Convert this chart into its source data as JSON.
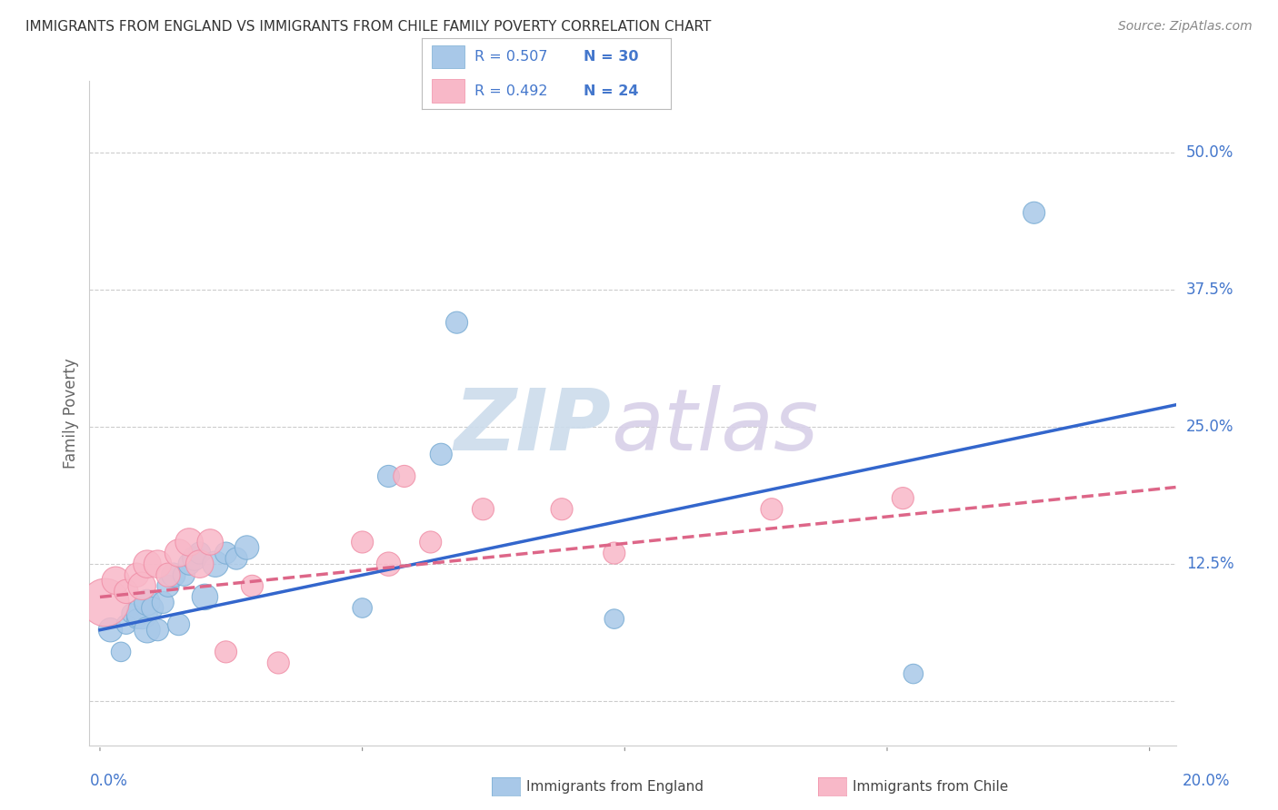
{
  "title": "IMMIGRANTS FROM ENGLAND VS IMMIGRANTS FROM CHILE FAMILY POVERTY CORRELATION CHART",
  "source": "Source: ZipAtlas.com",
  "ylabel": "Family Poverty",
  "y_tick_values": [
    0.0,
    0.125,
    0.25,
    0.375,
    0.5
  ],
  "y_tick_labels": [
    "",
    "12.5%",
    "25.0%",
    "37.5%",
    "50.0%"
  ],
  "xlim": [
    -0.002,
    0.205
  ],
  "ylim": [
    -0.04,
    0.565
  ],
  "legend_r1": "R = 0.507",
  "legend_n1": "N = 30",
  "legend_r2": "R = 0.492",
  "legend_n2": "N = 24",
  "england_color": "#a8c8e8",
  "england_edge_color": "#7aadd4",
  "chile_color": "#f8b8c8",
  "chile_edge_color": "#f090a8",
  "england_line_color": "#3366cc",
  "chile_line_color": "#dd6688",
  "watermark_zip_color": "#ccdcec",
  "watermark_atlas_color": "#d8d0e8",
  "england_x": [
    0.002,
    0.004,
    0.005,
    0.006,
    0.007,
    0.008,
    0.009,
    0.009,
    0.01,
    0.011,
    0.012,
    0.013,
    0.014,
    0.015,
    0.016,
    0.017,
    0.018,
    0.019,
    0.02,
    0.022,
    0.024,
    0.026,
    0.028,
    0.05,
    0.055,
    0.065,
    0.068,
    0.098,
    0.155,
    0.178
  ],
  "england_y": [
    0.065,
    0.045,
    0.07,
    0.08,
    0.075,
    0.08,
    0.09,
    0.065,
    0.085,
    0.065,
    0.09,
    0.105,
    0.115,
    0.07,
    0.115,
    0.125,
    0.13,
    0.135,
    0.095,
    0.125,
    0.135,
    0.13,
    0.14,
    0.085,
    0.205,
    0.225,
    0.345,
    0.075,
    0.025,
    0.445
  ],
  "england_size": [
    30,
    20,
    20,
    20,
    20,
    50,
    35,
    35,
    25,
    25,
    25,
    25,
    30,
    25,
    25,
    25,
    30,
    25,
    35,
    35,
    25,
    25,
    30,
    20,
    25,
    25,
    25,
    20,
    20,
    25
  ],
  "chile_x": [
    0.001,
    0.003,
    0.005,
    0.007,
    0.008,
    0.009,
    0.011,
    0.013,
    0.015,
    0.017,
    0.019,
    0.021,
    0.024,
    0.029,
    0.034,
    0.05,
    0.055,
    0.058,
    0.063,
    0.073,
    0.088,
    0.098,
    0.128,
    0.153
  ],
  "chile_y": [
    0.09,
    0.11,
    0.1,
    0.115,
    0.105,
    0.125,
    0.125,
    0.115,
    0.135,
    0.145,
    0.125,
    0.145,
    0.045,
    0.105,
    0.035,
    0.145,
    0.125,
    0.205,
    0.145,
    0.175,
    0.175,
    0.135,
    0.175,
    0.185
  ],
  "chile_size": [
    120,
    40,
    30,
    30,
    40,
    40,
    40,
    30,
    40,
    40,
    40,
    35,
    25,
    25,
    25,
    25,
    30,
    25,
    25,
    25,
    25,
    25,
    25,
    25
  ],
  "england_trendline_x": [
    0.0,
    0.205
  ],
  "england_trendline_y": [
    0.065,
    0.27
  ],
  "chile_trendline_x": [
    0.0,
    0.205
  ],
  "chile_trendline_y": [
    0.095,
    0.195
  ],
  "background_color": "#ffffff",
  "grid_color": "#cccccc",
  "title_color": "#333333",
  "axis_tick_color": "#4477cc",
  "ylabel_color": "#666666"
}
